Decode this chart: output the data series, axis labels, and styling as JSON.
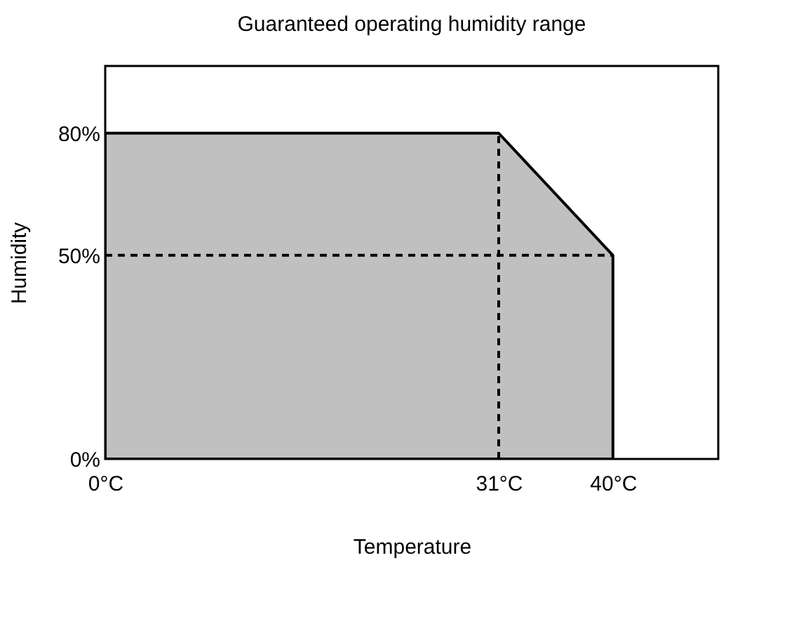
{
  "chart_data": {
    "type": "area",
    "title": "Guaranteed operating humidity range",
    "xlabel": "Temperature",
    "ylabel": "Humidity",
    "x": [
      0,
      31,
      40
    ],
    "series": [
      {
        "color": "#c0c0c0",
        "values": [
          80,
          80,
          50
        ]
      }
    ],
    "xlim": [
      0,
      48.3
    ],
    "ylim": [
      0,
      96.5
    ],
    "xticks": [
      {
        "value": 0,
        "label": "0°C"
      },
      {
        "value": 31,
        "label": "31°C"
      },
      {
        "value": 40,
        "label": "40°C"
      }
    ],
    "yticks": [
      {
        "value": 0,
        "label": "0%"
      },
      {
        "value": 50,
        "label": "50%"
      },
      {
        "value": 80,
        "label": "80%"
      }
    ],
    "ref_lines": [
      {
        "axis": "x",
        "value": 31,
        "line_style": "dashed"
      },
      {
        "axis": "y",
        "value": 50,
        "line_style": "dashed"
      }
    ],
    "grid": false
  }
}
